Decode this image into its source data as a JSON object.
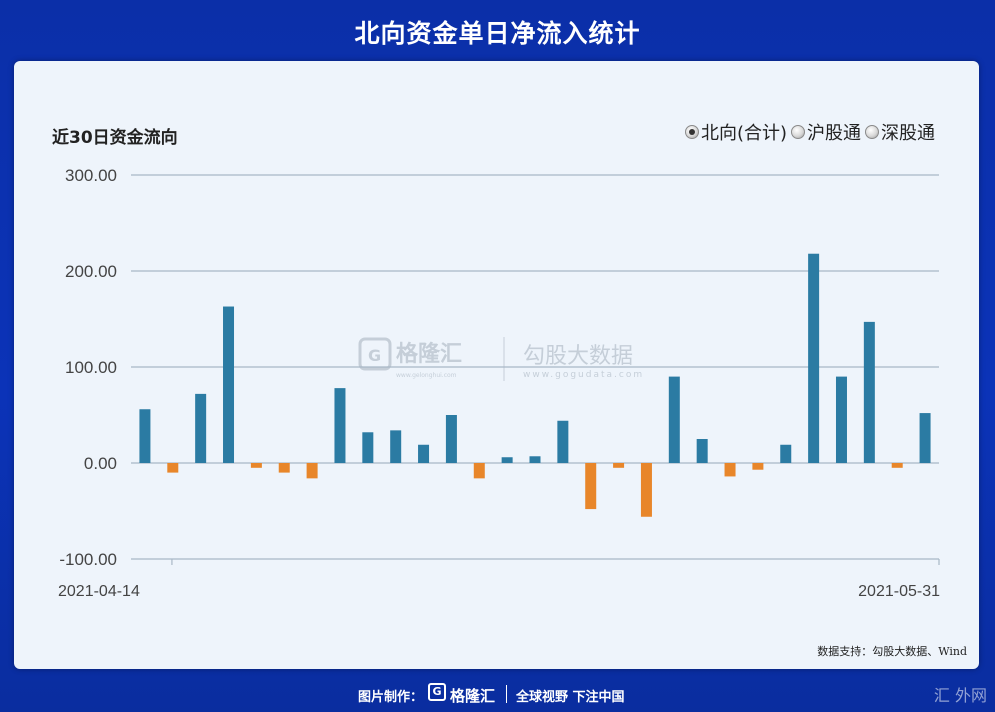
{
  "page_title": "北向资金单日净流入统计",
  "chart_title": "近30日资金流向",
  "legend": [
    {
      "label": "北向(合计)",
      "selected": true
    },
    {
      "label": "沪股通",
      "selected": false
    },
    {
      "label": "深股通",
      "selected": false
    }
  ],
  "source": "数据支持：勾股大数据、Wind",
  "footer": {
    "made_by": "图片制作：",
    "logo_letter": "G",
    "brand": "格隆汇",
    "slogan": "全球视野 下注中国"
  },
  "watermark": {
    "brand": "格隆汇",
    "brand_url": "www.gelonghui.com",
    "data_brand": "勾股大数据",
    "data_url": "www.gogudata.com",
    "corner": "汇 外网"
  },
  "colors": {
    "positive": "#2b7ba3",
    "negative": "#e8862a",
    "grid": "#a9b8c6"
  },
  "chart_data": {
    "type": "bar",
    "title": "近30日资金流向",
    "ylim": [
      -100,
      300
    ],
    "yticks": [
      -100,
      0,
      100,
      200,
      300
    ],
    "ytick_labels": [
      "-100.00",
      "0.00",
      "100.00",
      "200.00",
      "300.00"
    ],
    "xtick_labels": [
      "2021-04-14",
      "2021-05-31"
    ],
    "values": [
      56,
      -10,
      72,
      163,
      -5,
      -10,
      -16,
      78,
      32,
      34,
      19,
      50,
      -16,
      6,
      7,
      44,
      -48,
      -5,
      -56,
      90,
      25,
      -14,
      -7,
      19,
      218,
      90,
      147,
      -5,
      52
    ]
  }
}
